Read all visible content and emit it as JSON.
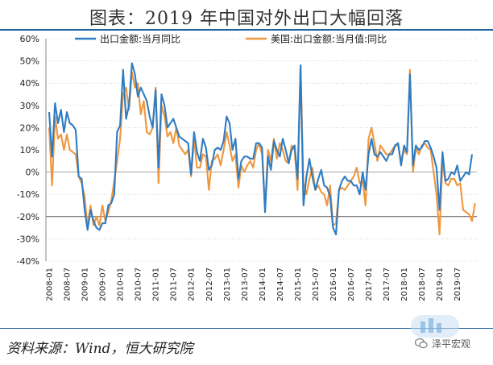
{
  "title": "图表：2019 年中国对外出口大幅回落",
  "source": "资料来源：Wind，恒大研究院",
  "watermark": "泽平宏观",
  "icons": {
    "watermark_logo": "chart-logo-icon",
    "wechat": "wechat-icon"
  },
  "chart_data": {
    "type": "line",
    "legend_position": "top",
    "ylim": [
      -40,
      60
    ],
    "yticks": [
      "-40%",
      "-30%",
      "-20%",
      "-10%",
      "0%",
      "10%",
      "20%",
      "30%",
      "40%",
      "50%",
      "60%"
    ],
    "x_tick_labels": [
      "2008-01",
      "2008-07",
      "2009-01",
      "2009-07",
      "2010-01",
      "2010-07",
      "2011-01",
      "2011-07",
      "2012-01",
      "2012-07",
      "2013-01",
      "2013-07",
      "2014-01",
      "2014-07",
      "2015-01",
      "2015-07",
      "2016-01",
      "2016-07",
      "2017-01",
      "2017-07",
      "2018-01",
      "2018-07",
      "2019-01",
      "2019-07"
    ],
    "start_month": "2008-01",
    "reference_line": -20,
    "colors": {
      "series_0": "#2e7cc3",
      "series_1": "#f0963c",
      "grid": "#bbbbbb"
    },
    "series": [
      {
        "name": "出口金额:当月同比",
        "values": [
          27,
          7,
          31,
          22,
          28,
          18,
          27,
          22,
          21,
          19,
          -2,
          -3,
          -17,
          -26,
          -17,
          -22,
          -25,
          -26,
          -23,
          -23,
          -15,
          -14,
          -10,
          18,
          21,
          46,
          24,
          30,
          49,
          44,
          34,
          38,
          35,
          32,
          25,
          20,
          37,
          2,
          35,
          30,
          20,
          22,
          24,
          20,
          16,
          15,
          14,
          13,
          -1,
          18,
          9,
          5,
          15,
          11,
          1,
          3,
          10,
          11,
          10,
          14,
          25,
          22,
          10,
          15,
          -3,
          5,
          7,
          7,
          6,
          6,
          13,
          13,
          11,
          -18,
          7,
          1,
          14,
          10,
          7,
          15,
          10,
          4,
          10,
          12,
          -3,
          48,
          -15,
          -2,
          6,
          -2,
          -8,
          -3,
          1,
          -6,
          -7,
          -11,
          -25,
          -28,
          -8,
          -4,
          -2,
          -4,
          -4,
          -6,
          -6,
          -10,
          0,
          -8,
          8,
          15,
          8,
          7,
          9,
          7,
          5,
          8,
          8,
          12,
          13,
          3,
          12,
          9,
          44,
          3,
          12,
          10,
          11,
          14,
          14,
          11,
          7,
          2,
          -17,
          9,
          -4,
          -3,
          0,
          -1,
          3,
          -4,
          -2,
          0,
          -1,
          8
        ]
      },
      {
        "name": "美国:出口金额:当月值:同比",
        "values": [
          20,
          -6,
          25,
          15,
          17,
          10,
          17,
          10,
          9,
          8,
          -2,
          -5,
          -11,
          -25,
          -15,
          -24,
          -20,
          -24,
          -15,
          -22,
          -18,
          -13,
          -4,
          5,
          15,
          35,
          38,
          28,
          45,
          38,
          40,
          26,
          32,
          18,
          17,
          20,
          38,
          -5,
          30,
          25,
          16,
          18,
          13,
          20,
          12,
          10,
          8,
          10,
          -2,
          15,
          2,
          2,
          8,
          7,
          -8,
          5,
          6,
          8,
          3,
          10,
          18,
          12,
          5,
          8,
          -7,
          3,
          0,
          3,
          5,
          2,
          10,
          13,
          8,
          -15,
          10,
          5,
          15,
          6,
          13,
          10,
          5,
          4,
          12,
          10,
          -8,
          48,
          -5,
          -10,
          -3,
          2,
          -8,
          -6,
          -9,
          -10,
          -15,
          -6,
          -24,
          -23,
          -8,
          -7,
          -8,
          -6,
          -4,
          -2,
          2,
          -5,
          -4,
          -15,
          15,
          20,
          13,
          5,
          12,
          10,
          8,
          8,
          10,
          12,
          12,
          5,
          10,
          8,
          46,
          0,
          11,
          8,
          12,
          13,
          11,
          10,
          0,
          -10,
          -28,
          5,
          -5,
          -6,
          -3,
          -3,
          -6,
          -5,
          -17,
          -18,
          -19,
          -22,
          -14
        ]
      }
    ]
  }
}
